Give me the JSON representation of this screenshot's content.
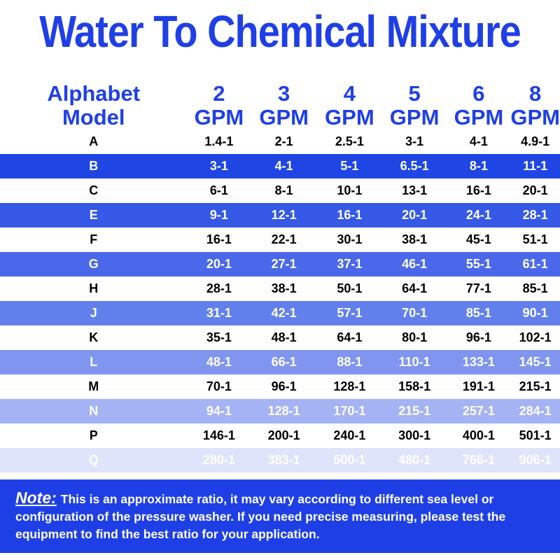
{
  "title": "Water To Chemical Mixture",
  "table": {
    "header": [
      "Alphabet Model",
      "2 GPM",
      "3 GPM",
      "4 GPM",
      "5 GPM",
      "6 GPM",
      "8 GPM"
    ],
    "rows": [
      [
        "A",
        "1.4-1",
        "2-1",
        "2.5-1",
        "3-1",
        "4-1",
        "4.9-1"
      ],
      [
        "B",
        "3-1",
        "4-1",
        "5-1",
        "6.5-1",
        "8-1",
        "11-1"
      ],
      [
        "C",
        "6-1",
        "8-1",
        "10-1",
        "13-1",
        "16-1",
        "20-1"
      ],
      [
        "E",
        "9-1",
        "12-1",
        "16-1",
        "20-1",
        "24-1",
        "28-1"
      ],
      [
        "F",
        "16-1",
        "22-1",
        "30-1",
        "38-1",
        "45-1",
        "51-1"
      ],
      [
        "G",
        "20-1",
        "27-1",
        "37-1",
        "46-1",
        "55-1",
        "61-1"
      ],
      [
        "H",
        "28-1",
        "38-1",
        "50-1",
        "64-1",
        "77-1",
        "85-1"
      ],
      [
        "J",
        "31-1",
        "42-1",
        "57-1",
        "70-1",
        "85-1",
        "90-1"
      ],
      [
        "K",
        "35-1",
        "48-1",
        "64-1",
        "80-1",
        "96-1",
        "102-1"
      ],
      [
        "L",
        "48-1",
        "66-1",
        "88-1",
        "110-1",
        "133-1",
        "145-1"
      ],
      [
        "M",
        "70-1",
        "96-1",
        "128-1",
        "158-1",
        "191-1",
        "215-1"
      ],
      [
        "N",
        "94-1",
        "128-1",
        "170-1",
        "215-1",
        "257-1",
        "284-1"
      ],
      [
        "P",
        "146-1",
        "200-1",
        "240-1",
        "300-1",
        "400-1",
        "501-1"
      ],
      [
        "Q",
        "280-1",
        "383-1",
        "500-1",
        "480-1",
        "766-1",
        "906-1"
      ]
    ]
  },
  "note": {
    "label": "Note:",
    "text": "This is an approximate ratio, it may vary according to different sea level or configuration of the pressure washer. If you need precise measuring, please test the equipment to find the best ratio for your application."
  }
}
